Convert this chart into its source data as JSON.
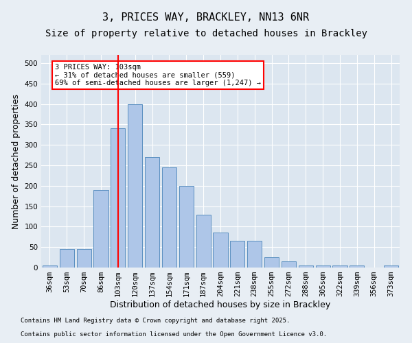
{
  "title": "3, PRICES WAY, BRACKLEY, NN13 6NR",
  "subtitle": "Size of property relative to detached houses in Brackley",
  "xlabel": "Distribution of detached houses by size in Brackley",
  "ylabel": "Number of detached properties",
  "footnote1": "Contains HM Land Registry data © Crown copyright and database right 2025.",
  "footnote2": "Contains public sector information licensed under the Open Government Licence v3.0.",
  "categories": [
    "36sqm",
    "53sqm",
    "70sqm",
    "86sqm",
    "103sqm",
    "120sqm",
    "137sqm",
    "154sqm",
    "171sqm",
    "187sqm",
    "204sqm",
    "221sqm",
    "238sqm",
    "255sqm",
    "272sqm",
    "288sqm",
    "305sqm",
    "322sqm",
    "339sqm",
    "356sqm",
    "373sqm"
  ],
  "values": [
    5,
    45,
    45,
    190,
    340,
    400,
    270,
    245,
    200,
    130,
    85,
    65,
    65,
    25,
    15,
    5,
    5,
    5,
    5,
    0,
    5
  ],
  "bar_color": "#aec6e8",
  "bar_edge_color": "#5a8fc0",
  "vline_x_index": 4,
  "vline_color": "red",
  "annotation_text": "3 PRICES WAY: 103sqm\n← 31% of detached houses are smaller (559)\n69% of semi-detached houses are larger (1,247) →",
  "annotation_box_color": "white",
  "annotation_box_edge_color": "red",
  "ylim": [
    0,
    520
  ],
  "yticks": [
    0,
    50,
    100,
    150,
    200,
    250,
    300,
    350,
    400,
    450,
    500
  ],
  "background_color": "#e8eef4",
  "plot_background_color": "#dce6f0",
  "grid_color": "white",
  "title_fontsize": 11,
  "subtitle_fontsize": 10,
  "axis_label_fontsize": 9,
  "tick_fontsize": 7.5
}
